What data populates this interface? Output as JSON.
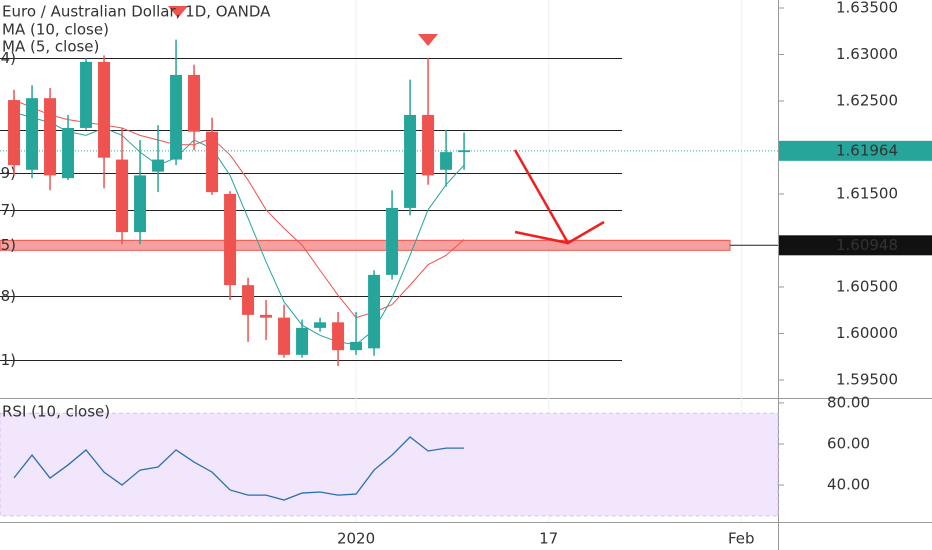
{
  "chart_data": [
    {
      "type": "candlestick",
      "title": "Euro / Australian Dollar, 1D, OANDA",
      "categories": [
        null,
        null,
        null,
        null,
        null,
        null,
        null,
        null,
        null,
        null,
        null,
        null,
        null,
        null,
        null,
        null,
        null,
        null,
        null,
        null,
        null,
        null,
        null,
        null,
        null,
        null
      ],
      "open": [
        1.6251,
        1.6176,
        1.6253,
        1.6167,
        1.6221,
        1.6292,
        1.6187,
        1.6109,
        1.6174,
        1.6187,
        1.6278,
        1.6217,
        1.615,
        1.6052,
        1.602,
        1.6017,
        1.5977,
        1.6006,
        1.6012,
        1.5982,
        1.5984,
        1.6063,
        1.6135,
        1.6235,
        1.6176,
        1.6195
      ],
      "high": [
        1.6262,
        1.6267,
        1.6264,
        1.6235,
        1.6296,
        1.6299,
        1.6221,
        1.6208,
        1.6224,
        1.6316,
        1.6289,
        1.6232,
        1.6153,
        1.606,
        1.6036,
        1.6031,
        1.6015,
        1.6017,
        1.6023,
        1.6023,
        1.6068,
        1.6154,
        1.6273,
        1.6296,
        1.6219,
        1.6216
      ],
      "low": [
        1.617,
        1.6167,
        1.6154,
        1.6165,
        1.6219,
        1.6156,
        1.6096,
        1.6096,
        1.6152,
        1.6181,
        1.6197,
        1.6149,
        1.6036,
        1.5991,
        1.5993,
        1.5974,
        1.5974,
        1.6002,
        1.5965,
        1.5977,
        1.5976,
        1.6058,
        1.6127,
        1.616,
        1.6158,
        1.6176
      ],
      "close": [
        1.6181,
        1.6253,
        1.617,
        1.6221,
        1.6292,
        1.6189,
        1.6109,
        1.617,
        1.6187,
        1.6278,
        1.6217,
        1.6152,
        1.6052,
        1.602,
        1.6017,
        1.5977,
        1.6006,
        1.6012,
        1.5982,
        1.5991,
        1.6063,
        1.6135,
        1.6235,
        1.617,
        1.6195,
        1.6197
      ],
      "up_color": "#26a69a",
      "down_color": "#ef5350",
      "overlays": [
        {
          "name": "MA (10, close)",
          "color": "#ef5350",
          "values": [
            1.6251,
            1.6243,
            1.6235,
            1.623,
            1.6227,
            1.6224,
            1.6221,
            1.6213,
            1.6208,
            1.6203,
            1.6203,
            1.621,
            1.6192,
            1.6165,
            1.6133,
            1.6113,
            1.6095,
            1.6068,
            1.6041,
            1.6017,
            1.6023,
            1.6031,
            1.6052,
            1.6074,
            1.6084,
            1.6101
          ]
        },
        {
          "name": "MA (5, close)",
          "color": "#26a69a",
          "values": [
            1.6238,
            1.6232,
            1.6227,
            1.6217,
            1.6213,
            1.6221,
            1.6213,
            1.6195,
            1.6181,
            1.6189,
            1.6208,
            1.6199,
            1.617,
            1.6124,
            1.6077,
            1.6034,
            1.6009,
            1.5998,
            1.5991,
            1.5988,
            1.6004,
            1.6038,
            1.6084,
            1.6133,
            1.616,
            1.6181
          ]
        }
      ],
      "levels": [
        {
          "value": 1.6296,
          "label": "4)"
        },
        {
          "value": 1.6219,
          "label": ")"
        },
        {
          "value": 1.6173,
          "label": "9)"
        },
        {
          "value": 1.6133,
          "label": "7)"
        },
        {
          "value": 1.604,
          "label": "8)"
        },
        {
          "value": 1.5971,
          "label": "1)"
        }
      ],
      "zone": {
        "value": 1.60948,
        "label": "5)",
        "price_label": "1.60948",
        "color": "#ef5350"
      },
      "last_price": {
        "value": 1.61964,
        "label": "1.61964"
      },
      "xlim": [
        -0.78,
        42.44
      ],
      "xticks": [
        {
          "value": 19,
          "label": "2020"
        },
        {
          "value": 29.7,
          "label": "17"
        },
        {
          "value": 40.4,
          "label": "Feb"
        }
      ],
      "ylim": [
        1.59306,
        1.63586
      ],
      "yticks": [
        {
          "value": 1.595,
          "label": "1.59500"
        },
        {
          "value": 1.6,
          "label": "1.60000"
        },
        {
          "value": 1.605,
          "label": "1.60500"
        },
        {
          "value": 1.615,
          "label": "1.61500"
        },
        {
          "value": 1.625,
          "label": "1.62500"
        },
        {
          "value": 1.63,
          "label": "1.63000"
        },
        {
          "value": 1.635,
          "label": "1.63500"
        }
      ]
    },
    {
      "type": "line",
      "title": "RSI (10, close)",
      "color": "#2a6fb0",
      "values": [
        43.5,
        54.6,
        43.4,
        49.8,
        57.1,
        46.3,
        40.0,
        47.3,
        48.8,
        57.1,
        51.2,
        46.3,
        37.6,
        35.1,
        35.1,
        32.7,
        36.1,
        36.6,
        35.1,
        35.6,
        47.3,
        54.6,
        63.4,
        56.6,
        58.0,
        58.0
      ],
      "band": [
        25,
        75
      ],
      "ylim": [
        22,
        82.4
      ],
      "yticks": [
        {
          "value": 40,
          "label": "40.00"
        },
        {
          "value": 60,
          "label": "60.00"
        },
        {
          "value": 80,
          "label": "80.00"
        }
      ]
    }
  ]
}
